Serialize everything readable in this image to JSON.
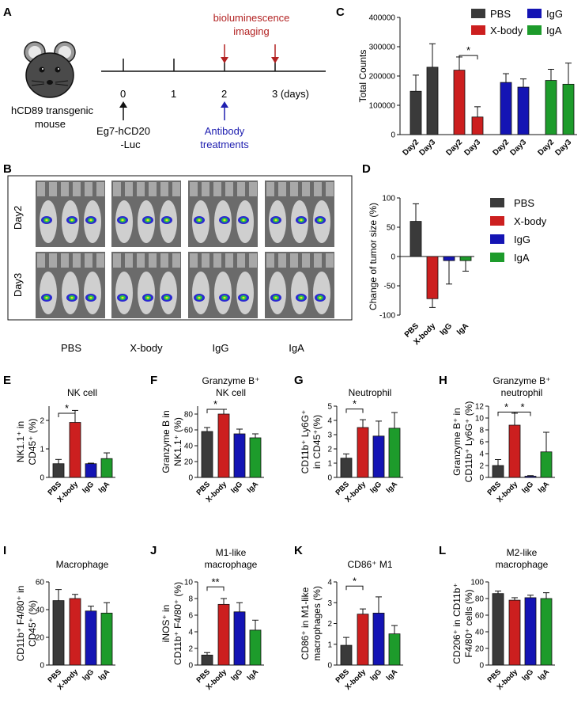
{
  "colors": {
    "pbs": "#3a3a3a",
    "xbody": "#cc1f1f",
    "igg": "#1414b4",
    "iga": "#1d9b2b",
    "red_text": "#b22222",
    "blue_text": "#2020b0"
  },
  "panel_labels": [
    "A",
    "B",
    "C",
    "D",
    "E",
    "F",
    "G",
    "H",
    "I",
    "J",
    "K",
    "L"
  ],
  "timeline": {
    "mouse_label_1": "hCD89  transgenic",
    "mouse_label_2": "mouse",
    "ticks": [
      "0",
      "1",
      "2",
      "3 (days)"
    ],
    "inoculation_1": "Eg7-hCD20",
    "inoculation_2": "-Luc",
    "imaging_1": "bioluminescence",
    "imaging_2": "imaging",
    "treat_1": "Antibody",
    "treat_2": "treatments"
  },
  "imaging": {
    "rows": [
      "Day2",
      "Day3"
    ],
    "groups": [
      "PBS",
      "X-body",
      "IgG",
      "IgA"
    ]
  },
  "chart_data": [
    {
      "id": "C",
      "type": "bar",
      "ylabel": "Total Counts",
      "ylim": [
        0,
        400000
      ],
      "yticks": [
        "0",
        "100000",
        "200000",
        "300000",
        "400000"
      ],
      "categories": [
        "Day2",
        "Day3",
        "Day2",
        "Day3",
        "Day2",
        "Day3",
        "Day2",
        "Day3"
      ],
      "values": [
        148000,
        230000,
        220000,
        60000,
        178000,
        162000,
        185000,
        172000
      ],
      "errors": [
        55000,
        80000,
        45000,
        35000,
        30000,
        28000,
        38000,
        72000
      ],
      "legend": [
        "PBS",
        "X-body",
        "IgG",
        "IgA"
      ],
      "sig": [
        "*"
      ]
    },
    {
      "id": "D",
      "type": "bar",
      "ylabel": "Change of tumor size (%)",
      "ylim": [
        -100,
        100
      ],
      "yticks": [
        "-100",
        "-50",
        "0",
        "50",
        "100"
      ],
      "categories": [
        "PBS",
        "X-body",
        "IgG",
        "IgA"
      ],
      "values": [
        60,
        -72,
        -7,
        -7
      ],
      "errors": [
        30,
        15,
        40,
        18
      ],
      "legend": [
        "PBS",
        "X-body",
        "IgG",
        "IgA"
      ]
    },
    {
      "id": "E",
      "type": "bar",
      "title": "NK cell",
      "ylabel_1": "NK1.1⁺ in",
      "ylabel_2": "CD45⁺ (%)",
      "ylim": [
        0,
        2.5
      ],
      "yticks": [
        "0",
        "1",
        "2"
      ],
      "categories": [
        "PBS",
        "X-body",
        "IgG",
        "IgA"
      ],
      "values": [
        0.48,
        1.93,
        0.48,
        0.66
      ],
      "errors": [
        0.15,
        0.42,
        0.02,
        0.2
      ],
      "sig": [
        "*"
      ]
    },
    {
      "id": "F",
      "type": "bar",
      "title_1": "Granzyme B⁺",
      "title_2": "NK cell",
      "ylabel_1": "Granzyme B in",
      "ylabel_2": "NK1.1⁺ (%)",
      "ylim": [
        0,
        90
      ],
      "yticks": [
        "0",
        "20",
        "40",
        "60",
        "80"
      ],
      "categories": [
        "PBS",
        "X-body",
        "IgG",
        "IgA"
      ],
      "values": [
        58,
        80,
        55,
        50
      ],
      "errors": [
        5,
        6,
        6,
        5
      ],
      "sig": [
        "*"
      ]
    },
    {
      "id": "G",
      "type": "bar",
      "title": "Neutrophil",
      "ylabel_1": "CD11b⁺ Ly6G⁺",
      "ylabel_2": "in CD45⁺(%)",
      "ylim": [
        0,
        5
      ],
      "yticks": [
        "0",
        "1",
        "2",
        "3",
        "4",
        "5"
      ],
      "categories": [
        "PBS",
        "X-body",
        "IgG",
        "IgA"
      ],
      "values": [
        1.35,
        3.5,
        2.9,
        3.45
      ],
      "errors": [
        0.3,
        0.55,
        1.05,
        1.1
      ],
      "sig": [
        "*"
      ]
    },
    {
      "id": "H",
      "type": "bar",
      "title_1": "Granzyme B⁺",
      "title_2": "neutrophil",
      "ylabel_1": "Granzyme B⁺ in",
      "ylabel_2": "CD11b⁺ Ly6G⁺ (%)",
      "ylim": [
        0,
        12
      ],
      "yticks": [
        "0",
        "2",
        "4",
        "6",
        "8",
        "10",
        "12"
      ],
      "categories": [
        "PBS",
        "X-body",
        "IgG",
        "IgA"
      ],
      "values": [
        2.0,
        8.8,
        0.2,
        4.3
      ],
      "errors": [
        1.0,
        2.0,
        0.1,
        3.3
      ],
      "sig": [
        "*",
        "*"
      ]
    },
    {
      "id": "I",
      "type": "bar",
      "title": "Macrophage",
      "ylabel_1": "CD11b⁺ F4/80⁺ in",
      "ylabel_2": "CD45⁺ (%)",
      "ylim": [
        0,
        60
      ],
      "yticks": [
        "0",
        "20",
        "40",
        "60"
      ],
      "categories": [
        "PBS",
        "X-body",
        "IgG",
        "IgA"
      ],
      "values": [
        46.5,
        48,
        39,
        37.5
      ],
      "errors": [
        8,
        3,
        3.5,
        7.5
      ]
    },
    {
      "id": "J",
      "type": "bar",
      "title_1": "M1-like",
      "title_2": "macrophage",
      "ylabel_1": "iNOS⁺ in",
      "ylabel_2": "CD11b⁺ F4/80⁺ (%)",
      "ylim": [
        0,
        10
      ],
      "yticks": [
        "0",
        "2",
        "4",
        "6",
        "8",
        "10"
      ],
      "categories": [
        "PBS",
        "X-body",
        "IgG",
        "IgA"
      ],
      "values": [
        1.2,
        7.3,
        6.4,
        4.2
      ],
      "errors": [
        0.3,
        0.7,
        1.1,
        1.2
      ],
      "sig": [
        "**"
      ]
    },
    {
      "id": "K",
      "type": "bar",
      "title": "CD86⁺ M1",
      "ylabel_1": "CD86⁺ in M1-like",
      "ylabel_2": "macrophages (%)",
      "ylim": [
        0,
        4
      ],
      "yticks": [
        "0",
        "1",
        "2",
        "3",
        "4"
      ],
      "categories": [
        "PBS",
        "X-body",
        "IgG",
        "IgA"
      ],
      "values": [
        0.95,
        2.45,
        2.5,
        1.5
      ],
      "errors": [
        0.38,
        0.25,
        0.78,
        0.4
      ],
      "sig": [
        "*"
      ]
    },
    {
      "id": "L",
      "type": "bar",
      "title_1": "M2-like",
      "title_2": "macrophage",
      "ylabel_1": "CD206⁺ in CD11b⁺",
      "ylabel_2": "F4/80⁺ cells (%)",
      "ylim": [
        0,
        100
      ],
      "yticks": [
        "0",
        "20",
        "40",
        "60",
        "80",
        "100"
      ],
      "categories": [
        "PBS",
        "X-body",
        "IgG",
        "IgA"
      ],
      "values": [
        86,
        78,
        81,
        80
      ],
      "errors": [
        3,
        3,
        3,
        7
      ]
    }
  ]
}
